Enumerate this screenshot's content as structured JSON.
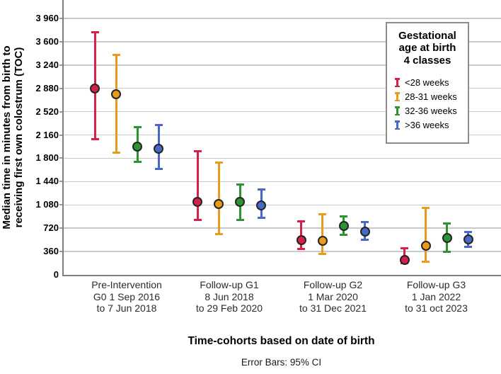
{
  "figure": {
    "caption": "Error Bars: 95% CI",
    "background_color": "#ffffff",
    "axis_color": "#7f7f7f",
    "gridline_color": "#c9c9c9"
  },
  "legend": {
    "title": "Gestational age at birth 4 classes",
    "title_display": "Gestational\nage at birth\n4 classes",
    "items": [
      {
        "label": "<28 weeks",
        "color": "#d5204b"
      },
      {
        "label": "28-31 weeks",
        "color": "#e89b1d"
      },
      {
        "label": "32-36 weeks",
        "color": "#2e9431"
      },
      {
        "label": ">36 weeks",
        "color": "#4668c6"
      }
    ]
  },
  "chart_data": {
    "type": "errorbar",
    "title": "",
    "xlabel": "Time-cohorts based on date of birth",
    "ylabel": "Median time in minutes from birth to receiving first own colostrum (TOC)",
    "ylabel_display": "Median time in minutes from birth to\nreceiving first own colostrum (TOC)",
    "error_bar_note": "Error Bars: 95% CI",
    "grid": true,
    "legend_position": "top-right",
    "ylim": [
      0,
      4245
    ],
    "yticks": [
      0,
      360,
      720,
      1080,
      1440,
      1800,
      2160,
      2520,
      2880,
      3240,
      3600,
      3960
    ],
    "ytick_labels": [
      "0",
      "360",
      "720",
      "1 080",
      "1 440",
      "1 800",
      "2 160",
      "2 520",
      "2 880",
      "3 240",
      "3 600",
      "3 960"
    ],
    "categories": [
      {
        "lines": [
          "Pre-Intervention",
          "G0 1 Sep 2016",
          "to 7 Jun 2018"
        ]
      },
      {
        "lines": [
          "Follow-up G1",
          "8 Jun 2018",
          "to 29 Feb 2020"
        ]
      },
      {
        "lines": [
          "Follow-up G2",
          "1 Mar 2020",
          "to 31 Dec 2021"
        ]
      },
      {
        "lines": [
          "Follow-up G3",
          "1 Jan 2022",
          "to 31 oct 2023"
        ]
      }
    ],
    "series": [
      {
        "name": "<28 weeks",
        "color": "#d5204b",
        "points": [
          {
            "median": 2880,
            "lower": 2090,
            "upper": 3750
          },
          {
            "median": 1130,
            "lower": 850,
            "upper": 1910
          },
          {
            "median": 540,
            "lower": 400,
            "upper": 830
          },
          {
            "median": 230,
            "lower": 180,
            "upper": 410
          }
        ]
      },
      {
        "name": "28-31 weeks",
        "color": "#e89b1d",
        "points": [
          {
            "median": 2790,
            "lower": 1890,
            "upper": 3400
          },
          {
            "median": 1090,
            "lower": 630,
            "upper": 1730
          },
          {
            "median": 530,
            "lower": 320,
            "upper": 930
          },
          {
            "median": 450,
            "lower": 200,
            "upper": 1030
          }
        ]
      },
      {
        "name": "32-36 weeks",
        "color": "#2e9431",
        "points": [
          {
            "median": 1980,
            "lower": 1750,
            "upper": 2280
          },
          {
            "median": 1130,
            "lower": 850,
            "upper": 1390
          },
          {
            "median": 750,
            "lower": 620,
            "upper": 900
          },
          {
            "median": 570,
            "lower": 360,
            "upper": 790
          }
        ]
      },
      {
        "name": ">36 weeks",
        "color": "#4668c6",
        "points": [
          {
            "median": 1950,
            "lower": 1640,
            "upper": 2310
          },
          {
            "median": 1070,
            "lower": 880,
            "upper": 1320
          },
          {
            "median": 670,
            "lower": 540,
            "upper": 820
          },
          {
            "median": 550,
            "lower": 430,
            "upper": 660
          }
        ]
      }
    ]
  }
}
